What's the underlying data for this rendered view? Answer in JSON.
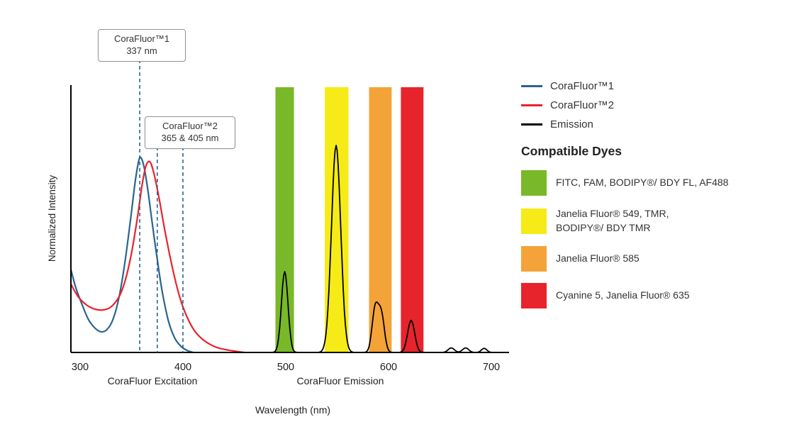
{
  "axis": {
    "x_ticks": [
      300,
      400,
      500,
      600,
      700
    ],
    "x_label": "Wavelength (nm)",
    "y_label": "Normalized Intensity",
    "x_region_labels": [
      {
        "text": "CoraFluor Excitation",
        "center_nm": 370
      },
      {
        "text": "CoraFluor Emission",
        "center_nm": 553
      }
    ]
  },
  "annotations": [
    {
      "title": "CoraFluor™1",
      "value": "337 nm",
      "dashed_lines_nm": [
        358
      ]
    },
    {
      "title": "CoraFluor™2",
      "value": "365 & 405 nm",
      "dashed_lines_nm": [
        375,
        400
      ]
    }
  ],
  "legend": {
    "items": [
      {
        "label": "CoraFluor™1",
        "color": "#2a6390"
      },
      {
        "label": "CoraFluor™2",
        "color": "#e8232d"
      },
      {
        "label": "Emission",
        "color": "#000000"
      }
    ]
  },
  "compatible_dyes": {
    "title": "Compatible Dyes",
    "items": [
      {
        "color": "#79b829",
        "label": "FITC, FAM, BODIPY®/ BDY FL, AF488"
      },
      {
        "color": "#f6eb16",
        "label": "Janelia Fluor® 549, TMR,\nBODIPY®/ BDY TMR"
      },
      {
        "color": "#f4a339",
        "label": "Janelia Fluor® 585"
      },
      {
        "color": "#e7242c",
        "label": "Cyanine 5, Janelia Fluor® 635"
      }
    ]
  },
  "chart_data": {
    "type": "line",
    "title": "CoraFluor excitation and emission spectra with compatible dye filter bands",
    "xlabel": "Wavelength (nm)",
    "ylabel": "Normalized Intensity",
    "xlim": [
      291,
      717
    ],
    "ylim": [
      0,
      1.05
    ],
    "x_ticks": [
      300,
      400,
      500,
      600,
      700
    ],
    "grid": false,
    "legend_position": "top-right",
    "dashed_line_color": "#2a6390",
    "series": [
      {
        "name": "CoraFluor™1",
        "type": "excitation",
        "color": "#2a6390",
        "points": [
          [
            291,
            0.4
          ],
          [
            296,
            0.31
          ],
          [
            302,
            0.23
          ],
          [
            308,
            0.16
          ],
          [
            314,
            0.12
          ],
          [
            320,
            0.1
          ],
          [
            326,
            0.11
          ],
          [
            332,
            0.16
          ],
          [
            338,
            0.27
          ],
          [
            344,
            0.45
          ],
          [
            350,
            0.68
          ],
          [
            354,
            0.84
          ],
          [
            358,
            0.94
          ],
          [
            362,
            0.9
          ],
          [
            366,
            0.78
          ],
          [
            370,
            0.63
          ],
          [
            375,
            0.45
          ],
          [
            380,
            0.29
          ],
          [
            386,
            0.15
          ],
          [
            392,
            0.07
          ],
          [
            398,
            0.03
          ],
          [
            404,
            0.01
          ],
          [
            410,
            0.0
          ]
        ]
      },
      {
        "name": "CoraFluor™2",
        "type": "excitation",
        "color": "#e8232d",
        "points": [
          [
            291,
            0.33
          ],
          [
            298,
            0.27
          ],
          [
            306,
            0.23
          ],
          [
            314,
            0.21
          ],
          [
            322,
            0.205
          ],
          [
            330,
            0.22
          ],
          [
            338,
            0.27
          ],
          [
            344,
            0.35
          ],
          [
            350,
            0.48
          ],
          [
            356,
            0.66
          ],
          [
            360,
            0.8
          ],
          [
            364,
            0.9
          ],
          [
            368,
            0.92
          ],
          [
            372,
            0.86
          ],
          [
            377,
            0.74
          ],
          [
            382,
            0.6
          ],
          [
            388,
            0.45
          ],
          [
            394,
            0.32
          ],
          [
            400,
            0.22
          ],
          [
            406,
            0.15
          ],
          [
            412,
            0.1
          ],
          [
            420,
            0.06
          ],
          [
            430,
            0.03
          ],
          [
            440,
            0.015
          ],
          [
            452,
            0.005
          ],
          [
            460,
            0.0
          ]
        ]
      },
      {
        "name": "Emission",
        "type": "emission",
        "color": "#000000",
        "peaks": [
          {
            "center_nm": 499,
            "height": 0.39,
            "sigma_nm": 3.2
          },
          {
            "center_nm": 549,
            "height": 1.0,
            "sigma_nm": 4.5
          },
          {
            "center_nm": 587,
            "height": 0.21,
            "sigma_nm": 3.0
          },
          {
            "center_nm": 593,
            "height": 0.18,
            "sigma_nm": 3.0
          },
          {
            "center_nm": 622,
            "height": 0.155,
            "sigma_nm": 3.4
          },
          {
            "center_nm": 661,
            "height": 0.022,
            "sigma_nm": 3.0
          },
          {
            "center_nm": 675,
            "height": 0.022,
            "sigma_nm": 3.0
          },
          {
            "center_nm": 693,
            "height": 0.02,
            "sigma_nm": 2.6
          }
        ]
      }
    ],
    "filter_bands": [
      {
        "dye_group": "FITC, FAM, BODIPY®/ BDY FL, AF488",
        "color": "#79b829",
        "from_nm": 490,
        "to_nm": 508
      },
      {
        "dye_group": "Janelia Fluor® 549, TMR, BODIPY®/ BDY TMR",
        "color": "#f6eb16",
        "from_nm": 538,
        "to_nm": 561
      },
      {
        "dye_group": "Janelia Fluor® 585",
        "color": "#f4a339",
        "from_nm": 581,
        "to_nm": 603
      },
      {
        "dye_group": "Cyanine 5, Janelia Fluor® 635",
        "color": "#e7242c",
        "from_nm": 612,
        "to_nm": 634
      }
    ]
  }
}
